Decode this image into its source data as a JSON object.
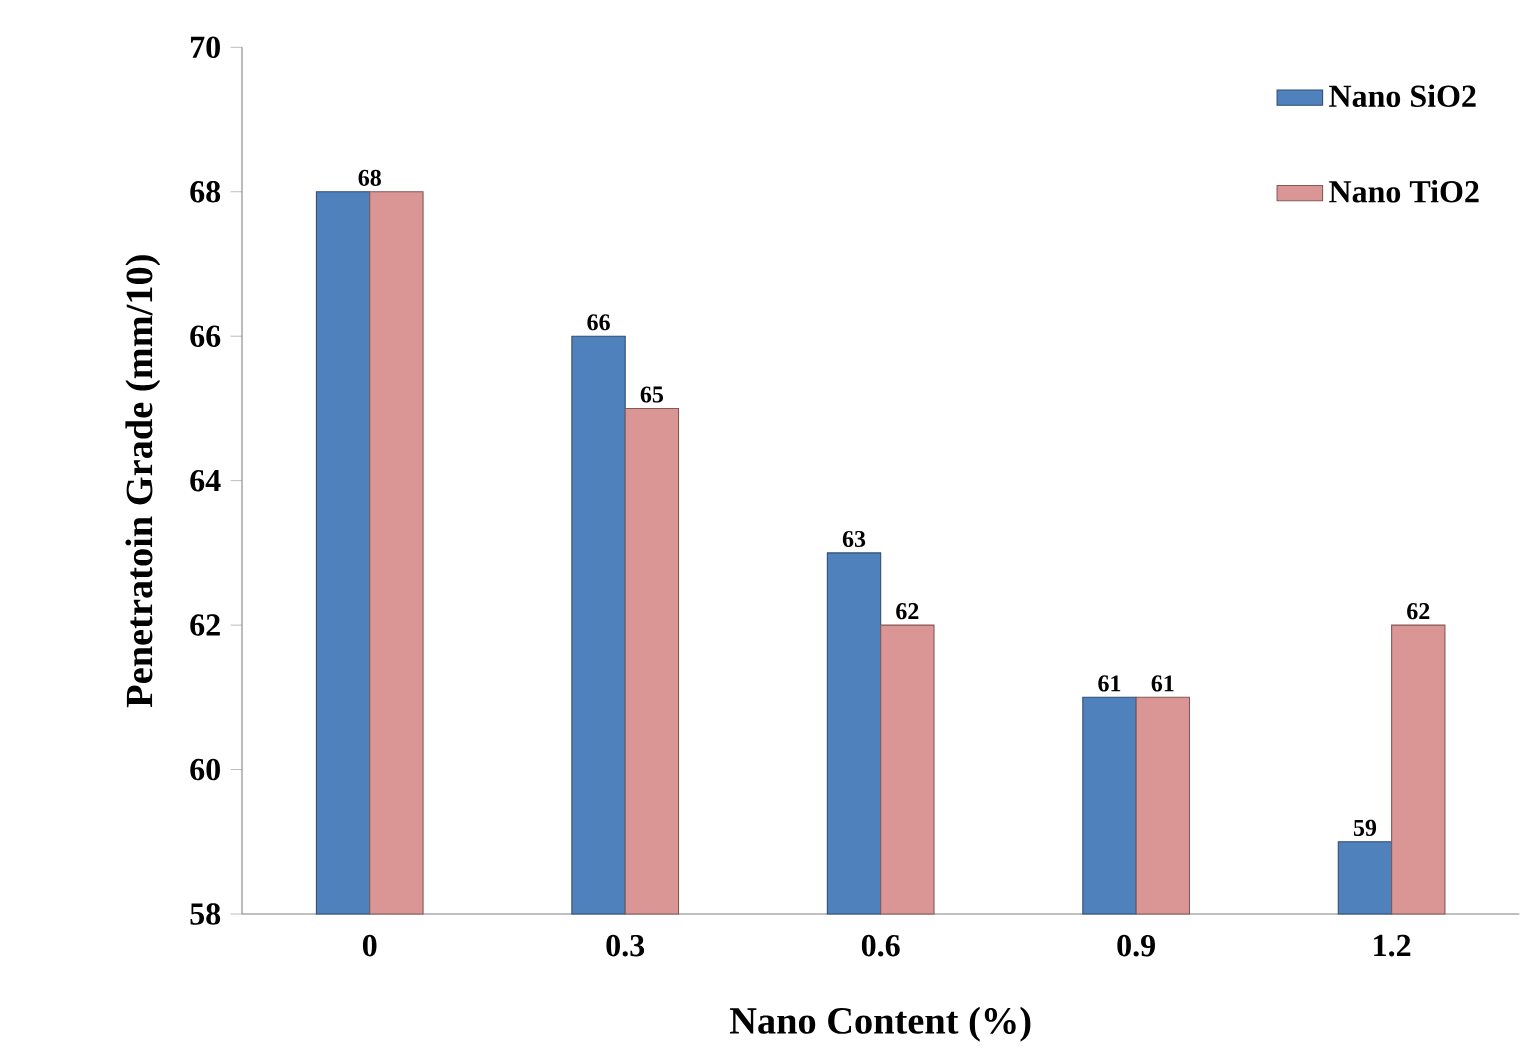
{
  "chart_data": {
    "type": "bar",
    "xlabel": "Nano Content (%)",
    "ylabel": "Penetratoin Grade (mm/10)",
    "categories": [
      "0",
      "0.3",
      "0.6",
      "0.9",
      "1.2"
    ],
    "series": [
      {
        "name": "Nano SiO2",
        "color": "#4f81bd",
        "values": [
          68,
          66,
          63,
          61,
          59
        ],
        "value_labels": [
          "68",
          "66",
          "63",
          "61",
          "59"
        ]
      },
      {
        "name": "Nano TiO2",
        "color": "#d99694",
        "values": [
          68,
          65,
          62,
          61,
          62
        ],
        "value_labels": [
          null,
          "65",
          "62",
          "61",
          "62"
        ]
      }
    ],
    "ylim": [
      58,
      70
    ],
    "yticks": [
      58,
      60,
      62,
      64,
      66,
      68,
      70
    ],
    "grid": false,
    "legend": "top right"
  }
}
